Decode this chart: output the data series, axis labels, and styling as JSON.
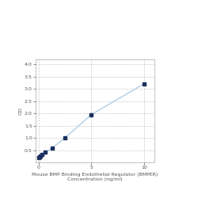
{
  "x_values": [
    0,
    0.078,
    0.156,
    0.313,
    0.625,
    1.25,
    2.5,
    5,
    10
  ],
  "y_values": [
    0.195,
    0.22,
    0.25,
    0.32,
    0.41,
    0.58,
    1.0,
    1.95,
    3.2
  ],
  "line_color": "#b0cfe8",
  "marker_color": "#1a3060",
  "marker_style": "s",
  "marker_size": 3,
  "line_width": 1.0,
  "xlabel_line1": "Mouse BMP Binding Endothelial Regulator (BMPER)",
  "xlabel_line2": "Concentration (ng/ml)",
  "ylabel": "OD",
  "xlim": [
    -0.3,
    11
  ],
  "ylim": [
    0.0,
    4.2
  ],
  "yticks": [
    0.5,
    1.0,
    1.5,
    2.0,
    2.5,
    3.0,
    3.5,
    4.0
  ],
  "xticks": [
    0,
    5,
    10
  ],
  "grid_color": "#cccccc",
  "grid_style": "--",
  "bg_color": "#ffffff",
  "label_fontsize": 4.5,
  "tick_fontsize": 4.5,
  "ylabel_fontsize": 4.5
}
